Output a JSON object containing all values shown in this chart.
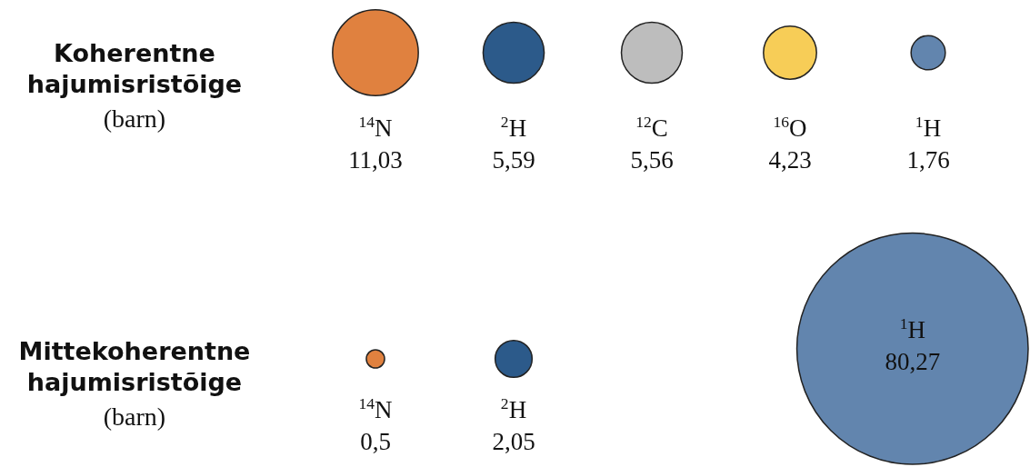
{
  "chart_data": [
    {
      "type": "other",
      "title": "Koherentne hajumisristõige",
      "subtitle": "(barn)",
      "categories": [
        "$^{14}$N",
        "$^{2}$H",
        "$^{12}$C",
        "$^{16}$O",
        "$^{1}$H"
      ],
      "values": [
        11.03,
        5.59,
        5.56,
        4.23,
        1.76
      ],
      "value_labels": [
        "11,03",
        "5,59",
        "5,56",
        "4,23",
        "1,76"
      ],
      "colors": [
        "#e0813f",
        "#2c5a8a",
        "#bdbdbd",
        "#f7cd57",
        "#6285ae"
      ]
    },
    {
      "type": "other",
      "title": "Mittekoherentne hajumisristõige",
      "subtitle": "(barn)",
      "categories": [
        "$^{14}$N",
        "$^{2}$H",
        "$^{1}$H"
      ],
      "values": [
        0.5,
        2.05,
        80.27
      ],
      "value_labels": [
        "0,5",
        "2,05",
        "80,27"
      ],
      "colors": [
        "#e0813f",
        "#2c5a8a",
        "#6285ae"
      ]
    }
  ]
}
